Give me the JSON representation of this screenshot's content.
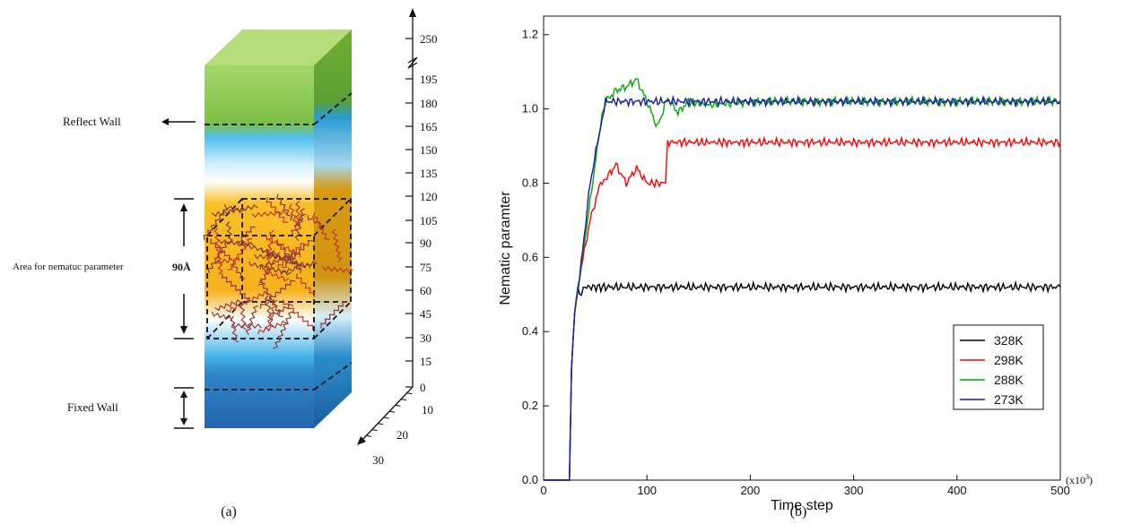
{
  "panel_a": {
    "caption": "(a)",
    "labels": {
      "reflect_wall": "Reflect Wall",
      "fixed_wall": "Fixed Wall",
      "area": "Area for nematuc parameter",
      "thickness": "90Å"
    },
    "z_ticks": [
      "250",
      "195",
      "180",
      "165",
      "150",
      "135",
      "120",
      "105",
      "90",
      "75",
      "60",
      "45",
      "30",
      "15",
      "0"
    ],
    "depth_ticks": [
      "10",
      "20",
      "30"
    ],
    "colors": {
      "top_green": "#9ccf4e",
      "mid_blue": "#3fb1e6",
      "orange": "#f5b21a",
      "bottom_blue": "#2a7fc2"
    }
  },
  "panel_b": {
    "caption": "(b)",
    "x_multiplier": "(x10",
    "x_multiplier_exp": "3",
    "x_multiplier_close": ")"
  },
  "chart_data": {
    "type": "line",
    "title": "",
    "xlabel": "Time step",
    "ylabel": "Nematic paramter",
    "xlim": [
      0,
      500
    ],
    "ylim": [
      0.0,
      1.25
    ],
    "x_ticks": [
      0,
      100,
      200,
      300,
      400,
      500
    ],
    "y_ticks": [
      0.0,
      0.2,
      0.4,
      0.6,
      0.8,
      1.0,
      1.2
    ],
    "y_tick_labels": [
      "0.0",
      "0.2",
      "0.4",
      "0.6",
      "0.8",
      "1.0",
      "1.2"
    ],
    "grid": false,
    "legend_position": "bottom-right",
    "series": [
      {
        "name": "328K",
        "color": "#000000",
        "x": [
          0,
          25,
          27,
          30,
          33,
          35,
          40,
          60,
          100,
          200,
          300,
          400,
          500
        ],
        "y": [
          0,
          0,
          0.3,
          0.45,
          0.52,
          0.5,
          0.52,
          0.52,
          0.52,
          0.52,
          0.52,
          0.52,
          0.52
        ]
      },
      {
        "name": "298K",
        "color": "#ff0000",
        "x": [
          0,
          25,
          27,
          30,
          35,
          45,
          55,
          60,
          70,
          80,
          90,
          100,
          118,
          120,
          150,
          200,
          300,
          400,
          500
        ],
        "y": [
          0,
          0,
          0.3,
          0.45,
          0.55,
          0.7,
          0.8,
          0.81,
          0.85,
          0.8,
          0.84,
          0.8,
          0.8,
          0.91,
          0.91,
          0.91,
          0.91,
          0.91,
          0.91
        ]
      },
      {
        "name": "288K",
        "color": "#00aa00",
        "x": [
          0,
          25,
          27,
          30,
          35,
          45,
          55,
          60,
          70,
          80,
          90,
          100,
          110,
          120,
          130,
          140,
          160,
          200,
          300,
          400,
          500
        ],
        "y": [
          0,
          0,
          0.3,
          0.45,
          0.55,
          0.75,
          0.96,
          1.02,
          1.05,
          1.06,
          1.08,
          1.02,
          0.95,
          1.03,
          0.99,
          1.02,
          1.01,
          1.02,
          1.02,
          1.02,
          1.02
        ]
      },
      {
        "name": "273K",
        "color": "#1a1aa8",
        "x": [
          0,
          25,
          27,
          30,
          35,
          45,
          55,
          60,
          100,
          200,
          300,
          400,
          500
        ],
        "y": [
          0,
          0,
          0.3,
          0.45,
          0.55,
          0.8,
          0.95,
          1.02,
          1.02,
          1.02,
          1.02,
          1.02,
          1.02
        ]
      }
    ]
  }
}
